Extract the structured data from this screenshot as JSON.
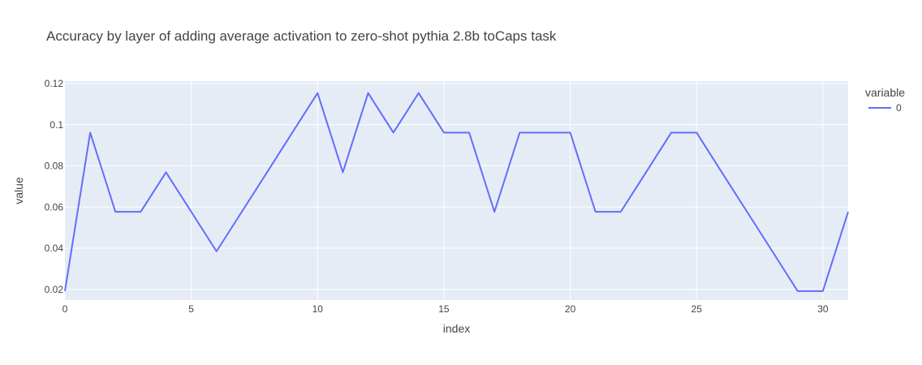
{
  "chart_data": {
    "type": "line",
    "title": "Accuracy by layer of adding average activation to zero-shot pythia 2.8b toCaps task",
    "xlabel": "index",
    "ylabel": "value",
    "xlim": [
      0,
      31
    ],
    "ylim": [
      0.0148,
      0.1212
    ],
    "x_ticks": [
      0,
      5,
      10,
      15,
      20,
      25,
      30
    ],
    "y_ticks": [
      0.02,
      0.04,
      0.06,
      0.08,
      0.1,
      0.12
    ],
    "y_tick_labels": [
      "0.02",
      "0.04",
      "0.06",
      "0.08",
      "0.1",
      "0.12"
    ],
    "legend": {
      "title": "variable",
      "position": "top-right"
    },
    "series": [
      {
        "name": "0",
        "color": "#636efa",
        "x": [
          0,
          1,
          2,
          3,
          4,
          5,
          6,
          7,
          8,
          9,
          10,
          11,
          12,
          13,
          14,
          15,
          16,
          17,
          18,
          19,
          20,
          21,
          22,
          23,
          24,
          25,
          26,
          27,
          28,
          29,
          30,
          31
        ],
        "values": [
          0.0192,
          0.0962,
          0.0577,
          0.0577,
          0.0769,
          0.0577,
          0.0385,
          0.0577,
          0.0769,
          0.0962,
          0.1154,
          0.0769,
          0.1154,
          0.0962,
          0.1154,
          0.0962,
          0.0962,
          0.0577,
          0.0962,
          0.0962,
          0.0962,
          0.0577,
          0.0577,
          0.0769,
          0.0962,
          0.0962,
          0.0769,
          0.0577,
          0.0385,
          0.0192,
          0.0192,
          0.0577
        ]
      }
    ]
  },
  "colors": {
    "plot_background": "#e5ecf6",
    "grid": "#ffffff",
    "text": "#444444"
  }
}
